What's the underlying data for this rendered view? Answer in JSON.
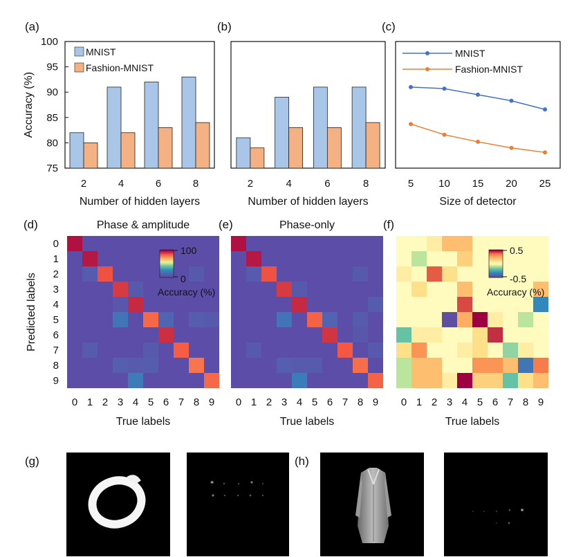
{
  "colors": {
    "mnist_bar": "#a9c6e8",
    "fashion_bar": "#f4b183",
    "mnist_line": "#4472c4",
    "fashion_line": "#ed7d31",
    "heatmap_background": "#5c4ea8"
  },
  "panels": {
    "a": "(a)",
    "b": "(b)",
    "c": "(c)",
    "d": "(d)",
    "e": "(e)",
    "f": "(f)",
    "g": "(g)",
    "h": "(h)"
  },
  "chart_data": [
    {
      "panel": "a",
      "type": "bar",
      "categories": [
        "2",
        "4",
        "6",
        "8"
      ],
      "series": [
        {
          "name": "MNIST",
          "values": [
            82,
            91,
            92,
            93
          ]
        },
        {
          "name": "Fashion-MNIST",
          "values": [
            80,
            82,
            83,
            84
          ]
        }
      ],
      "xlabel": "Number of hidden layers",
      "ylabel": "Accuracy (%)",
      "ylim": [
        75,
        100
      ],
      "yticks": [
        "75",
        "80",
        "85",
        "90",
        "95",
        "100"
      ],
      "legend": "top-left"
    },
    {
      "panel": "b",
      "type": "bar",
      "categories": [
        "2",
        "4",
        "6",
        "8"
      ],
      "series": [
        {
          "name": "MNIST",
          "values": [
            81,
            89,
            91,
            91
          ]
        },
        {
          "name": "Fashion-MNIST",
          "values": [
            79,
            83,
            83,
            84
          ]
        }
      ],
      "xlabel": "Number of hidden layers",
      "ylim": [
        75,
        100
      ]
    },
    {
      "panel": "c",
      "type": "line",
      "x": [
        "5",
        "10",
        "15",
        "20",
        "25"
      ],
      "series": [
        {
          "name": "MNIST",
          "values": [
            91.0,
            90.7,
            89.5,
            88.3,
            86.6
          ]
        },
        {
          "name": "Fashion-MNIST",
          "values": [
            83.7,
            81.6,
            80.2,
            79.0,
            78.1
          ]
        }
      ],
      "xlabel": "Size of detector",
      "ylim": [
        75,
        100
      ],
      "legend": "top-right"
    },
    {
      "panel": "d",
      "type": "heatmap",
      "title": "Phase & amplitude",
      "xlabel": "True labels",
      "ylabel": "Predicted labels",
      "x": [
        "0",
        "1",
        "2",
        "3",
        "4",
        "5",
        "6",
        "7",
        "8",
        "9"
      ],
      "y": [
        "0",
        "1",
        "2",
        "3",
        "4",
        "5",
        "6",
        "7",
        "8",
        "9"
      ],
      "colorbar": {
        "label": "Accuracy (%)",
        "min_label": "0",
        "max_label": "100",
        "range": [
          0,
          100
        ]
      },
      "cells": [
        {
          "row": 0,
          "col": 0,
          "v": 97
        },
        {
          "row": 1,
          "col": 1,
          "v": 96
        },
        {
          "row": 2,
          "col": 2,
          "v": 86
        },
        {
          "row": 3,
          "col": 3,
          "v": 90
        },
        {
          "row": 4,
          "col": 4,
          "v": 93
        },
        {
          "row": 5,
          "col": 5,
          "v": 82
        },
        {
          "row": 6,
          "col": 6,
          "v": 92
        },
        {
          "row": 7,
          "col": 7,
          "v": 84
        },
        {
          "row": 8,
          "col": 8,
          "v": 80
        },
        {
          "row": 9,
          "col": 9,
          "v": 82
        },
        {
          "row": 5,
          "col": 3,
          "v": 18
        },
        {
          "row": 9,
          "col": 4,
          "v": 20
        },
        {
          "row": 5,
          "col": 6,
          "v": 12
        },
        {
          "row": 8,
          "col": 3,
          "v": 9
        },
        {
          "row": 2,
          "col": 1,
          "v": 7
        },
        {
          "row": 3,
          "col": 4,
          "v": 6
        },
        {
          "row": 4,
          "col": 3,
          "v": 5
        },
        {
          "row": 5,
          "col": 8,
          "v": 8
        },
        {
          "row": 7,
          "col": 1,
          "v": 7
        },
        {
          "row": 8,
          "col": 4,
          "v": 7
        },
        {
          "row": 8,
          "col": 5,
          "v": 8
        },
        {
          "row": 7,
          "col": 5,
          "v": 6
        },
        {
          "row": 2,
          "col": 8,
          "v": 6
        },
        {
          "row": 5,
          "col": 9,
          "v": 6
        }
      ]
    },
    {
      "panel": "e",
      "type": "heatmap",
      "title": "Phase-only",
      "xlabel": "True labels",
      "x": [
        "0",
        "1",
        "2",
        "3",
        "4",
        "5",
        "6",
        "7",
        "8",
        "9"
      ],
      "y": [
        "0",
        "1",
        "2",
        "3",
        "4",
        "5",
        "6",
        "7",
        "8",
        "9"
      ],
      "colorbar": {
        "range": [
          0,
          100
        ]
      },
      "cells": [
        {
          "row": 0,
          "col": 0,
          "v": 97
        },
        {
          "row": 1,
          "col": 1,
          "v": 96
        },
        {
          "row": 2,
          "col": 2,
          "v": 86
        },
        {
          "row": 3,
          "col": 3,
          "v": 90
        },
        {
          "row": 4,
          "col": 4,
          "v": 93
        },
        {
          "row": 5,
          "col": 5,
          "v": 83
        },
        {
          "row": 6,
          "col": 6,
          "v": 91
        },
        {
          "row": 7,
          "col": 7,
          "v": 85
        },
        {
          "row": 8,
          "col": 8,
          "v": 81
        },
        {
          "row": 9,
          "col": 9,
          "v": 83
        },
        {
          "row": 5,
          "col": 3,
          "v": 18
        },
        {
          "row": 9,
          "col": 4,
          "v": 21
        },
        {
          "row": 5,
          "col": 6,
          "v": 11
        },
        {
          "row": 8,
          "col": 3,
          "v": 9
        },
        {
          "row": 2,
          "col": 1,
          "v": 7
        },
        {
          "row": 3,
          "col": 4,
          "v": 6
        },
        {
          "row": 4,
          "col": 9,
          "v": 7
        },
        {
          "row": 5,
          "col": 8,
          "v": 7
        },
        {
          "row": 7,
          "col": 1,
          "v": 6
        },
        {
          "row": 8,
          "col": 4,
          "v": 7
        },
        {
          "row": 8,
          "col": 5,
          "v": 7
        },
        {
          "row": 7,
          "col": 9,
          "v": 6
        },
        {
          "row": 2,
          "col": 8,
          "v": 6
        },
        {
          "row": 6,
          "col": 8,
          "v": 5
        }
      ]
    },
    {
      "panel": "f",
      "type": "heatmap",
      "xlabel": "True labels",
      "x": [
        "0",
        "1",
        "2",
        "3",
        "4",
        "5",
        "6",
        "7",
        "8",
        "9"
      ],
      "y": [
        "0",
        "1",
        "2",
        "3",
        "4",
        "5",
        "6",
        "7",
        "8",
        "9"
      ],
      "colorbar": {
        "label": "Accuracy (%)",
        "min_label": "-0.5",
        "max_label": "0.5",
        "range": [
          -0.5,
          0.5
        ]
      },
      "cells": [
        {
          "row": 0,
          "col": 3,
          "v": 0.2
        },
        {
          "row": 0,
          "col": 4,
          "v": 0.2
        },
        {
          "row": 0,
          "col": 2,
          "v": 0.05
        },
        {
          "row": 1,
          "col": 1,
          "v": -0.1
        },
        {
          "row": 1,
          "col": 4,
          "v": 0.15
        },
        {
          "row": 2,
          "col": 2,
          "v": 0.4
        },
        {
          "row": 2,
          "col": 0,
          "v": 0.05
        },
        {
          "row": 2,
          "col": 3,
          "v": 0.1
        },
        {
          "row": 3,
          "col": 1,
          "v": 0.1
        },
        {
          "row": 3,
          "col": 4,
          "v": 0.2
        },
        {
          "row": 3,
          "col": 9,
          "v": 0.2
        },
        {
          "row": 4,
          "col": 4,
          "v": 0.42
        },
        {
          "row": 4,
          "col": 9,
          "v": -0.35
        },
        {
          "row": 5,
          "col": 3,
          "v": -0.5
        },
        {
          "row": 5,
          "col": 4,
          "v": 0.25
        },
        {
          "row": 5,
          "col": 5,
          "v": 0.5
        },
        {
          "row": 5,
          "col": 8,
          "v": -0.1
        },
        {
          "row": 5,
          "col": 6,
          "v": 0.05
        },
        {
          "row": 6,
          "col": 0,
          "v": -0.2
        },
        {
          "row": 6,
          "col": 6,
          "v": 0.45
        },
        {
          "row": 6,
          "col": 1,
          "v": 0.05
        },
        {
          "row": 6,
          "col": 2,
          "v": 0.05
        },
        {
          "row": 6,
          "col": 5,
          "v": 0.1
        },
        {
          "row": 7,
          "col": 1,
          "v": 0.3
        },
        {
          "row": 7,
          "col": 4,
          "v": 0.05
        },
        {
          "row": 7,
          "col": 5,
          "v": 0.1
        },
        {
          "row": 7,
          "col": 7,
          "v": -0.15
        },
        {
          "row": 7,
          "col": 8,
          "v": 0.05
        },
        {
          "row": 7,
          "col": 0,
          "v": 0.1
        },
        {
          "row": 8,
          "col": 0,
          "v": -0.1
        },
        {
          "row": 8,
          "col": 1,
          "v": 0.2
        },
        {
          "row": 8,
          "col": 2,
          "v": 0.2
        },
        {
          "row": 8,
          "col": 5,
          "v": 0.3
        },
        {
          "row": 8,
          "col": 6,
          "v": 0.3
        },
        {
          "row": 8,
          "col": 7,
          "v": 0.2
        },
        {
          "row": 8,
          "col": 8,
          "v": -0.4
        },
        {
          "row": 8,
          "col": 9,
          "v": 0.35
        },
        {
          "row": 9,
          "col": 0,
          "v": -0.1
        },
        {
          "row": 9,
          "col": 1,
          "v": 0.2
        },
        {
          "row": 9,
          "col": 2,
          "v": 0.2
        },
        {
          "row": 9,
          "col": 3,
          "v": 0.05
        },
        {
          "row": 9,
          "col": 4,
          "v": 0.5
        },
        {
          "row": 9,
          "col": 5,
          "v": 0.15
        },
        {
          "row": 9,
          "col": 6,
          "v": 0.15
        },
        {
          "row": 9,
          "col": 7,
          "v": -0.2
        },
        {
          "row": 9,
          "col": 8,
          "v": 0.1
        },
        {
          "row": 9,
          "col": 9,
          "v": 0.2
        }
      ]
    }
  ]
}
